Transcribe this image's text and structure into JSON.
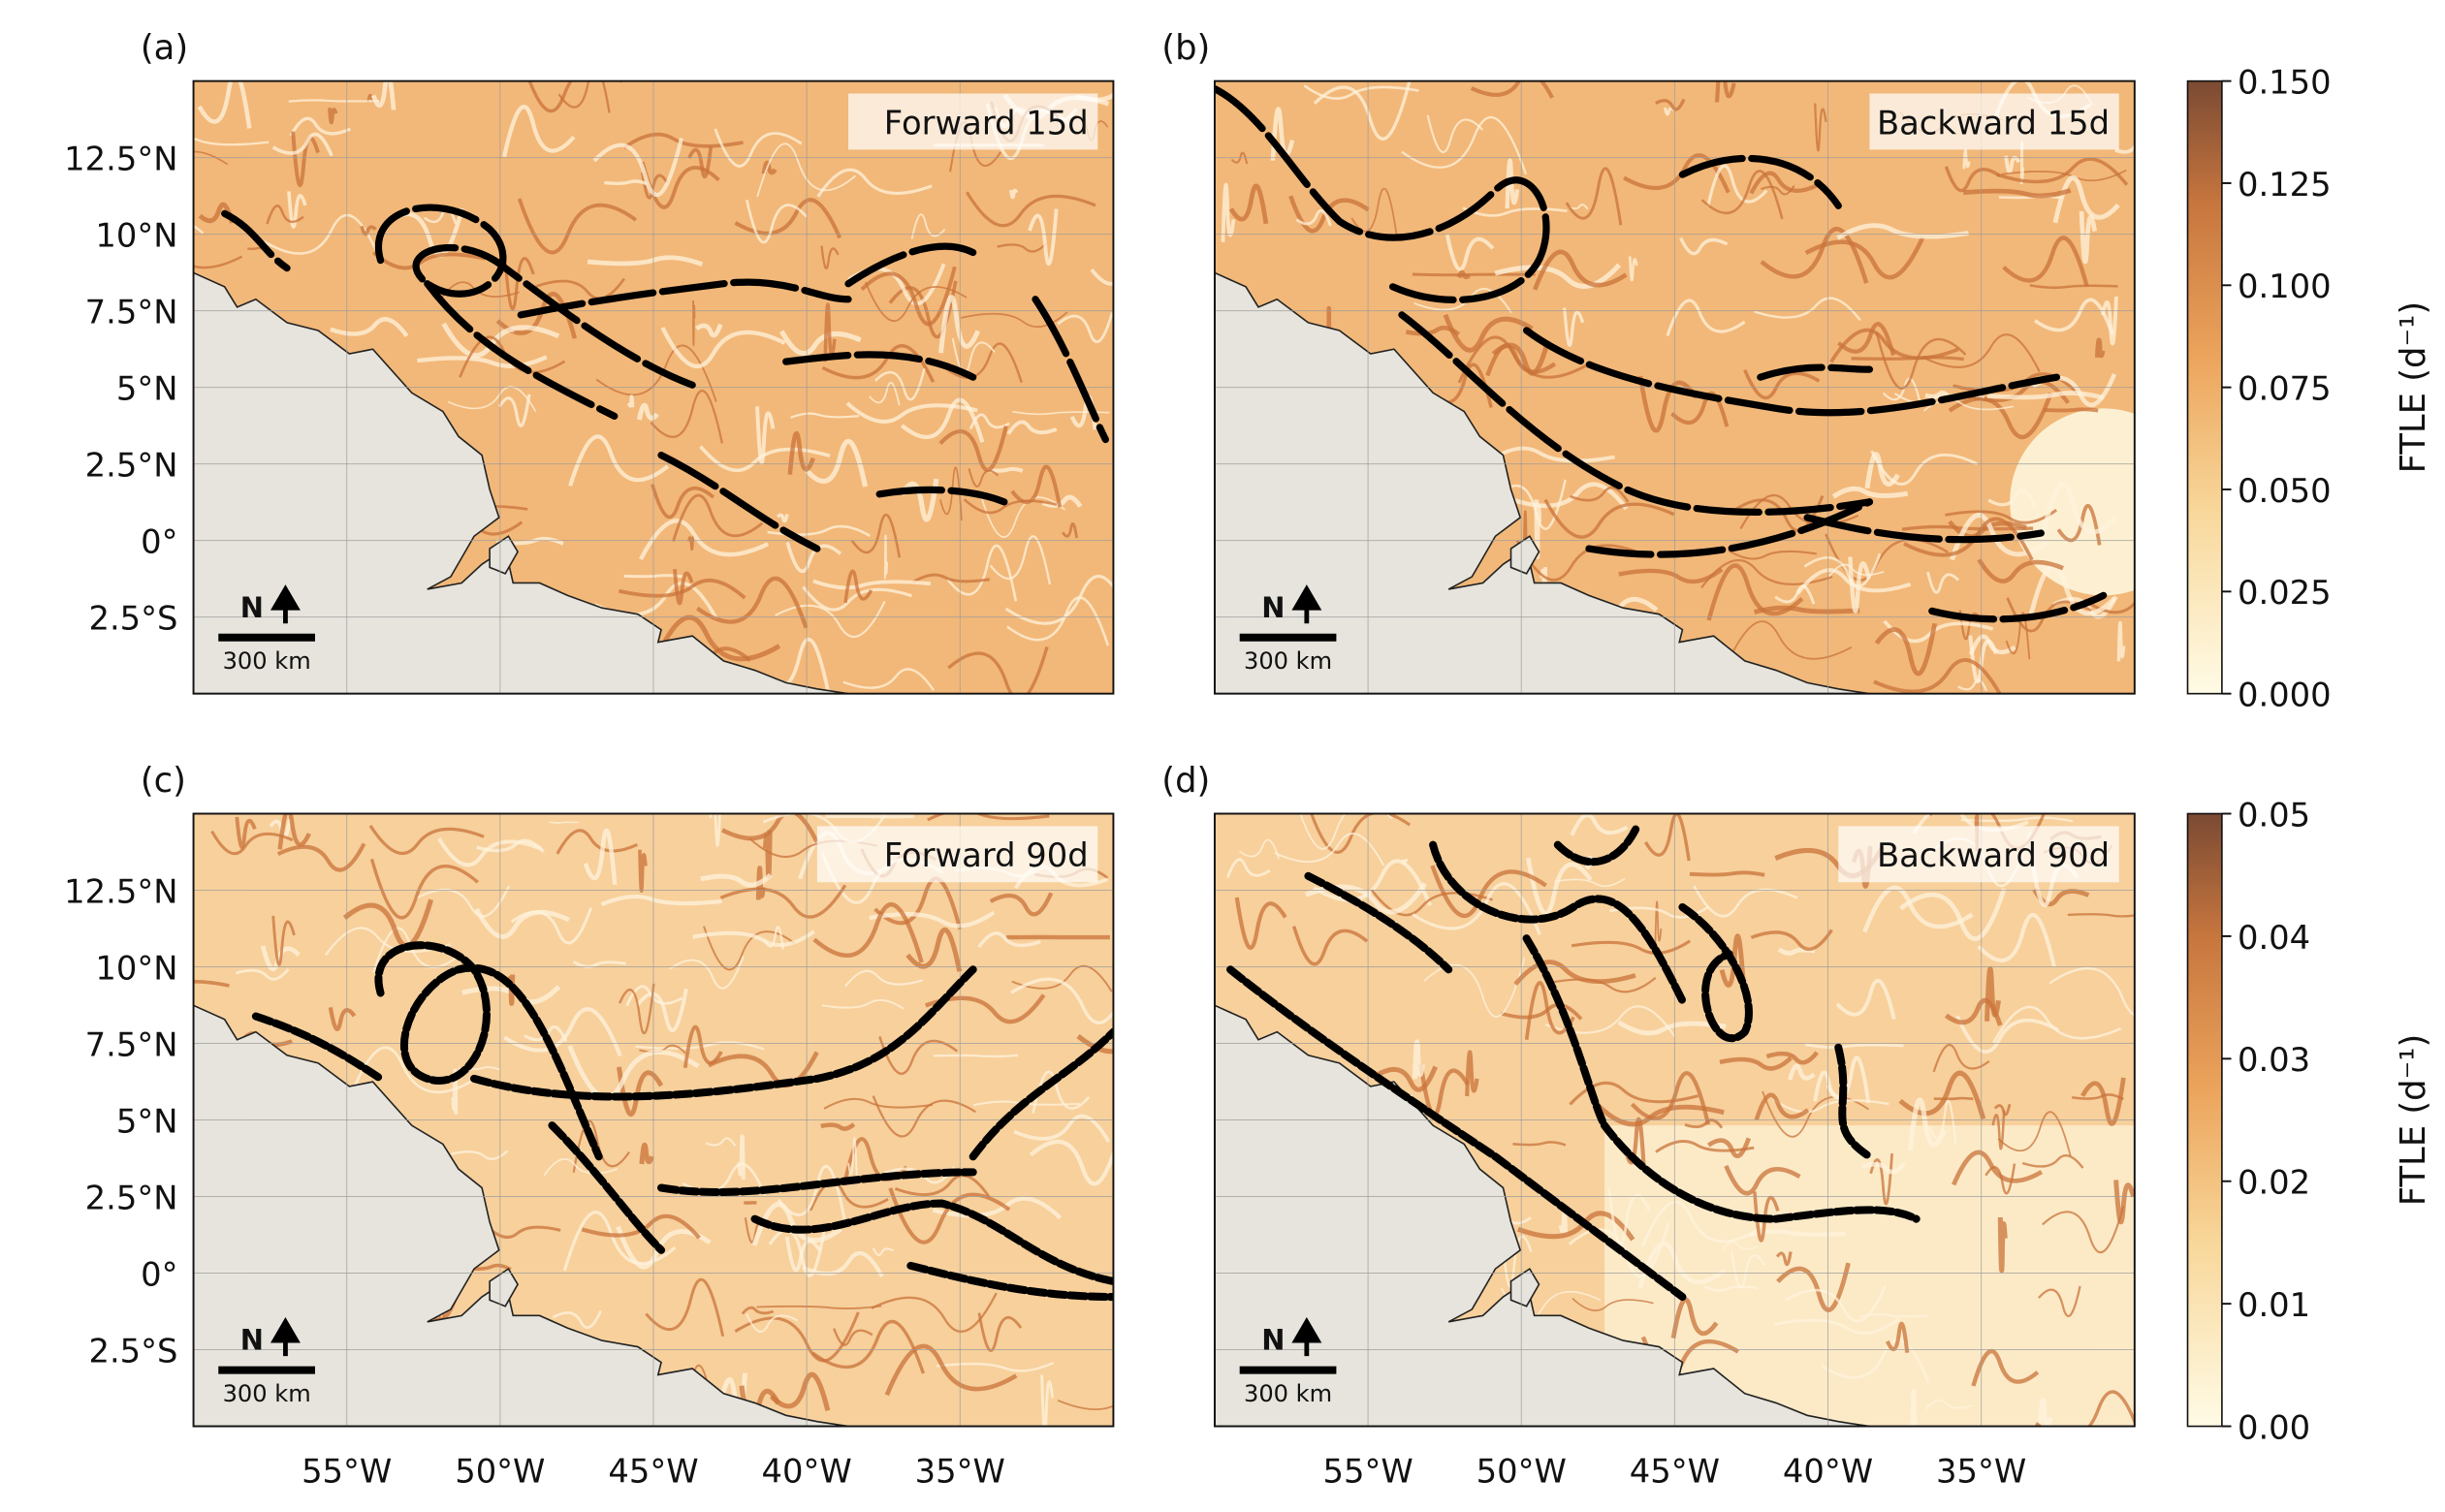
{
  "panels": [
    {
      "label": "(a)",
      "annotation": "Forward 15d"
    },
    {
      "label": "(b)",
      "annotation": "Backward 15d"
    },
    {
      "label": "(c)",
      "annotation": "Forward 90d"
    },
    {
      "label": "(d)",
      "annotation": "Backward 90d"
    }
  ],
  "map": {
    "xlim": [
      -60,
      -30
    ],
    "ylim": [
      -5,
      15
    ],
    "xticks": [
      {
        "value": -55,
        "label": "55°W"
      },
      {
        "value": -50,
        "label": "50°W"
      },
      {
        "value": -45,
        "label": "45°W"
      },
      {
        "value": -40,
        "label": "40°W"
      },
      {
        "value": -35,
        "label": "35°W"
      }
    ],
    "yticks": [
      {
        "value": 12.5,
        "label": "12.5°N"
      },
      {
        "value": 10,
        "label": "10°N"
      },
      {
        "value": 7.5,
        "label": "7.5°N"
      },
      {
        "value": 5,
        "label": "5°N"
      },
      {
        "value": 2.5,
        "label": "2.5°N"
      },
      {
        "value": 0,
        "label": "0°"
      },
      {
        "value": -2.5,
        "label": "2.5°S"
      }
    ],
    "grid": true
  },
  "scale_bar": {
    "north": "N",
    "length_label": "300 km"
  },
  "colorbars": [
    {
      "label": "FTLE (d⁻¹)",
      "lim": [
        0,
        0.15
      ],
      "ticks": [
        {
          "value": 0.15,
          "label": "0.150"
        },
        {
          "value": 0.125,
          "label": "0.125"
        },
        {
          "value": 0.1,
          "label": "0.100"
        },
        {
          "value": 0.075,
          "label": "0.075"
        },
        {
          "value": 0.05,
          "label": "0.050"
        },
        {
          "value": 0.025,
          "label": "0.025"
        },
        {
          "value": 0,
          "label": "0.000"
        }
      ]
    },
    {
      "label": "FTLE (d⁻¹)",
      "lim": [
        0,
        0.05
      ],
      "ticks": [
        {
          "value": 0.05,
          "label": "0.05"
        },
        {
          "value": 0.04,
          "label": "0.04"
        },
        {
          "value": 0.03,
          "label": "0.03"
        },
        {
          "value": 0.02,
          "label": "0.02"
        },
        {
          "value": 0.01,
          "label": "0.01"
        },
        {
          "value": 0,
          "label": "0.00"
        }
      ]
    }
  ]
}
